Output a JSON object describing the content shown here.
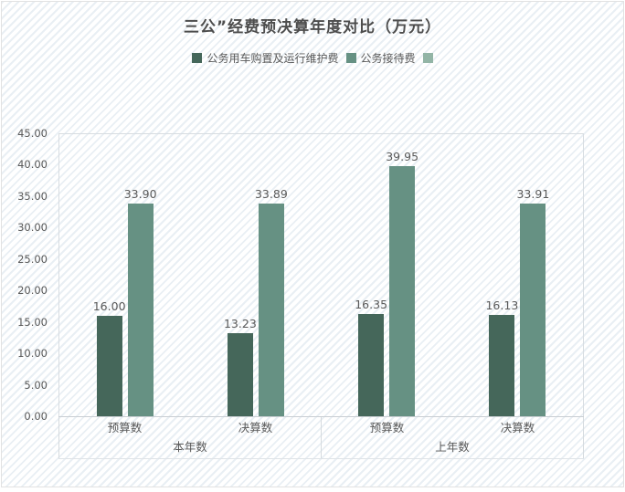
{
  "title": "三公”经费预决算年度对比（万元）",
  "legend": [
    {
      "label": "公务用车购置及运行维护费",
      "color": "#45675A"
    },
    {
      "label": "公务接待费",
      "color": "#669183"
    },
    {
      "label": "",
      "color": "#93B5A6"
    }
  ],
  "chart_data": {
    "type": "bar",
    "title": "三公”经费预决算年度对比（万元）",
    "unit": "万元",
    "legend_position": "top",
    "grid": false,
    "ylim": [
      0,
      45
    ],
    "yticks": [
      "45.00",
      "40.00",
      "35.00",
      "30.00",
      "25.00",
      "20.00",
      "15.00",
      "10.00",
      "5.00",
      "0.00"
    ],
    "groups": [
      {
        "label": "本年数",
        "categories": [
          "预算数",
          "决算数"
        ]
      },
      {
        "label": "上年数",
        "categories": [
          "预算数",
          "决算数"
        ]
      }
    ],
    "series": [
      {
        "name": "公务用车购置及运行维护费",
        "color": "#45675A",
        "values": [
          16.0,
          13.23,
          16.35,
          16.13
        ],
        "labels": [
          "16.00",
          "13.23",
          "16.35",
          "16.13"
        ]
      },
      {
        "name": "公务接待费",
        "color": "#669183",
        "values": [
          33.9,
          33.89,
          39.95,
          33.91
        ],
        "labels": [
          "33.90",
          "33.89",
          "39.95",
          "33.91"
        ]
      }
    ]
  }
}
